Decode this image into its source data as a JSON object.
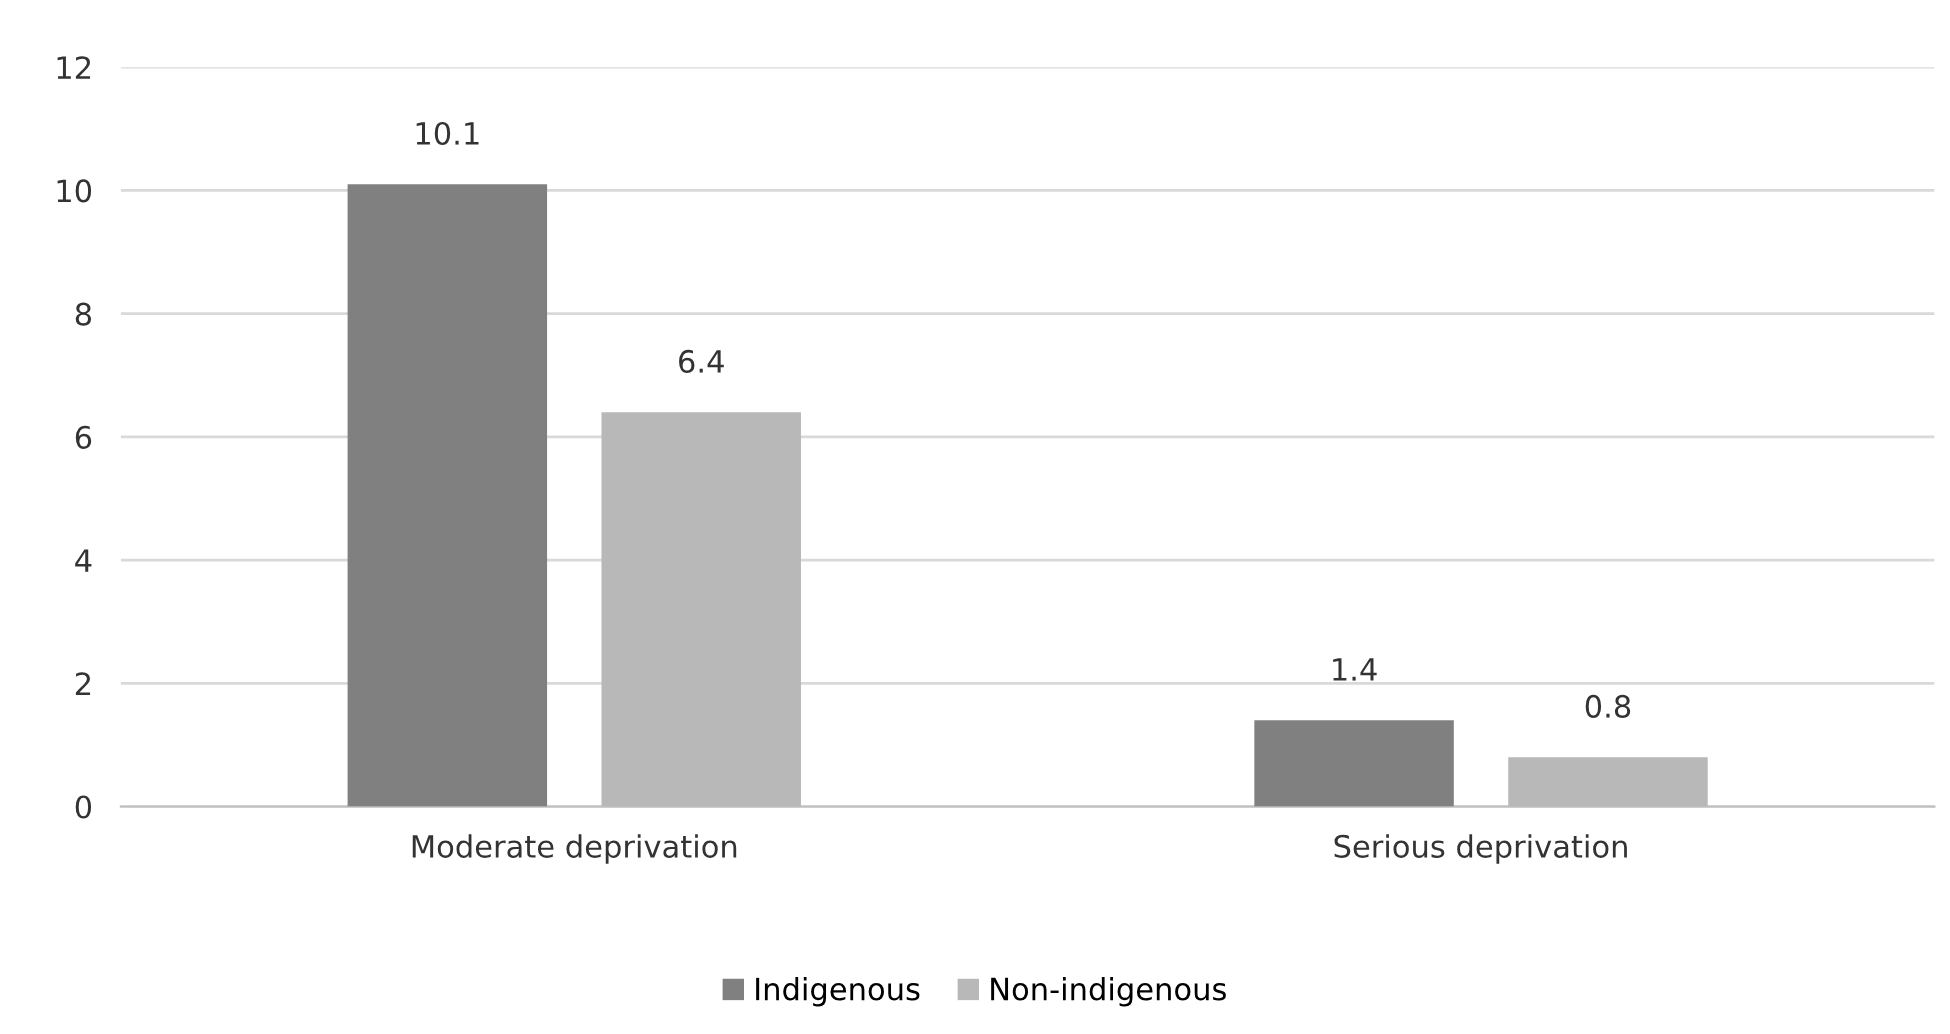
{
  "chart_data": {
    "type": "bar",
    "categories": [
      "Moderate deprivation",
      "Serious deprivation"
    ],
    "series": [
      {
        "name": "Indigenous",
        "color": "#808080",
        "values": [
          10.1,
          1.4
        ]
      },
      {
        "name": "Non-indigenous",
        "color": "#b8b8b8",
        "values": [
          6.4,
          0.8
        ]
      }
    ],
    "ylim": [
      0,
      12
    ],
    "yticks": [
      0,
      2,
      4,
      6,
      8,
      10,
      12
    ],
    "grid": "y",
    "legend": "bottom",
    "data_labels": true
  }
}
